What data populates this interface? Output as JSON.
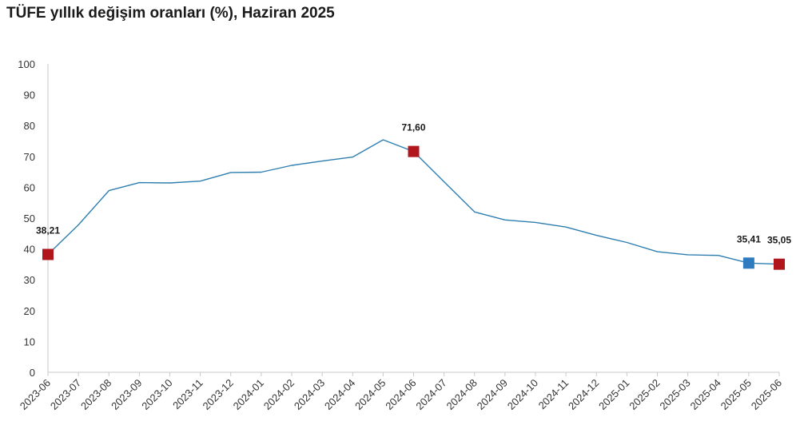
{
  "chart_data": {
    "type": "line",
    "title": "TÜFE yıllık değişim oranları (%), Haziran 2025",
    "categories": [
      "2023-06",
      "2023-07",
      "2023-08",
      "2023-09",
      "2023-10",
      "2023-11",
      "2023-12",
      "2024-01",
      "2024-02",
      "2024-03",
      "2024-04",
      "2024-05",
      "2024-06",
      "2024-07",
      "2024-08",
      "2024-09",
      "2024-10",
      "2024-11",
      "2024-12",
      "2025-01",
      "2025-02",
      "2025-03",
      "2025-04",
      "2025-05",
      "2025-06"
    ],
    "values": [
      38.21,
      47.8,
      58.9,
      61.5,
      61.4,
      62.0,
      64.8,
      64.9,
      67.1,
      68.5,
      69.8,
      75.4,
      71.6,
      61.8,
      52.0,
      49.4,
      48.6,
      47.1,
      44.4,
      42.1,
      39.1,
      38.1,
      37.9,
      35.41,
      35.05
    ],
    "ylim": [
      0,
      100
    ],
    "yticks": [
      0,
      10,
      20,
      30,
      40,
      50,
      60,
      70,
      80,
      90,
      100
    ],
    "line_color": "#2e7fb0",
    "axis_color": "#c8c8c8",
    "annotations": [
      {
        "index": 0,
        "label": "38,21",
        "color": "#b0161c"
      },
      {
        "index": 12,
        "label": "71,60",
        "color": "#b0161c"
      },
      {
        "index": 23,
        "label": "35,41",
        "color": "#2e7bbf"
      },
      {
        "index": 24,
        "label": "35,05",
        "color": "#b0161c"
      }
    ]
  }
}
